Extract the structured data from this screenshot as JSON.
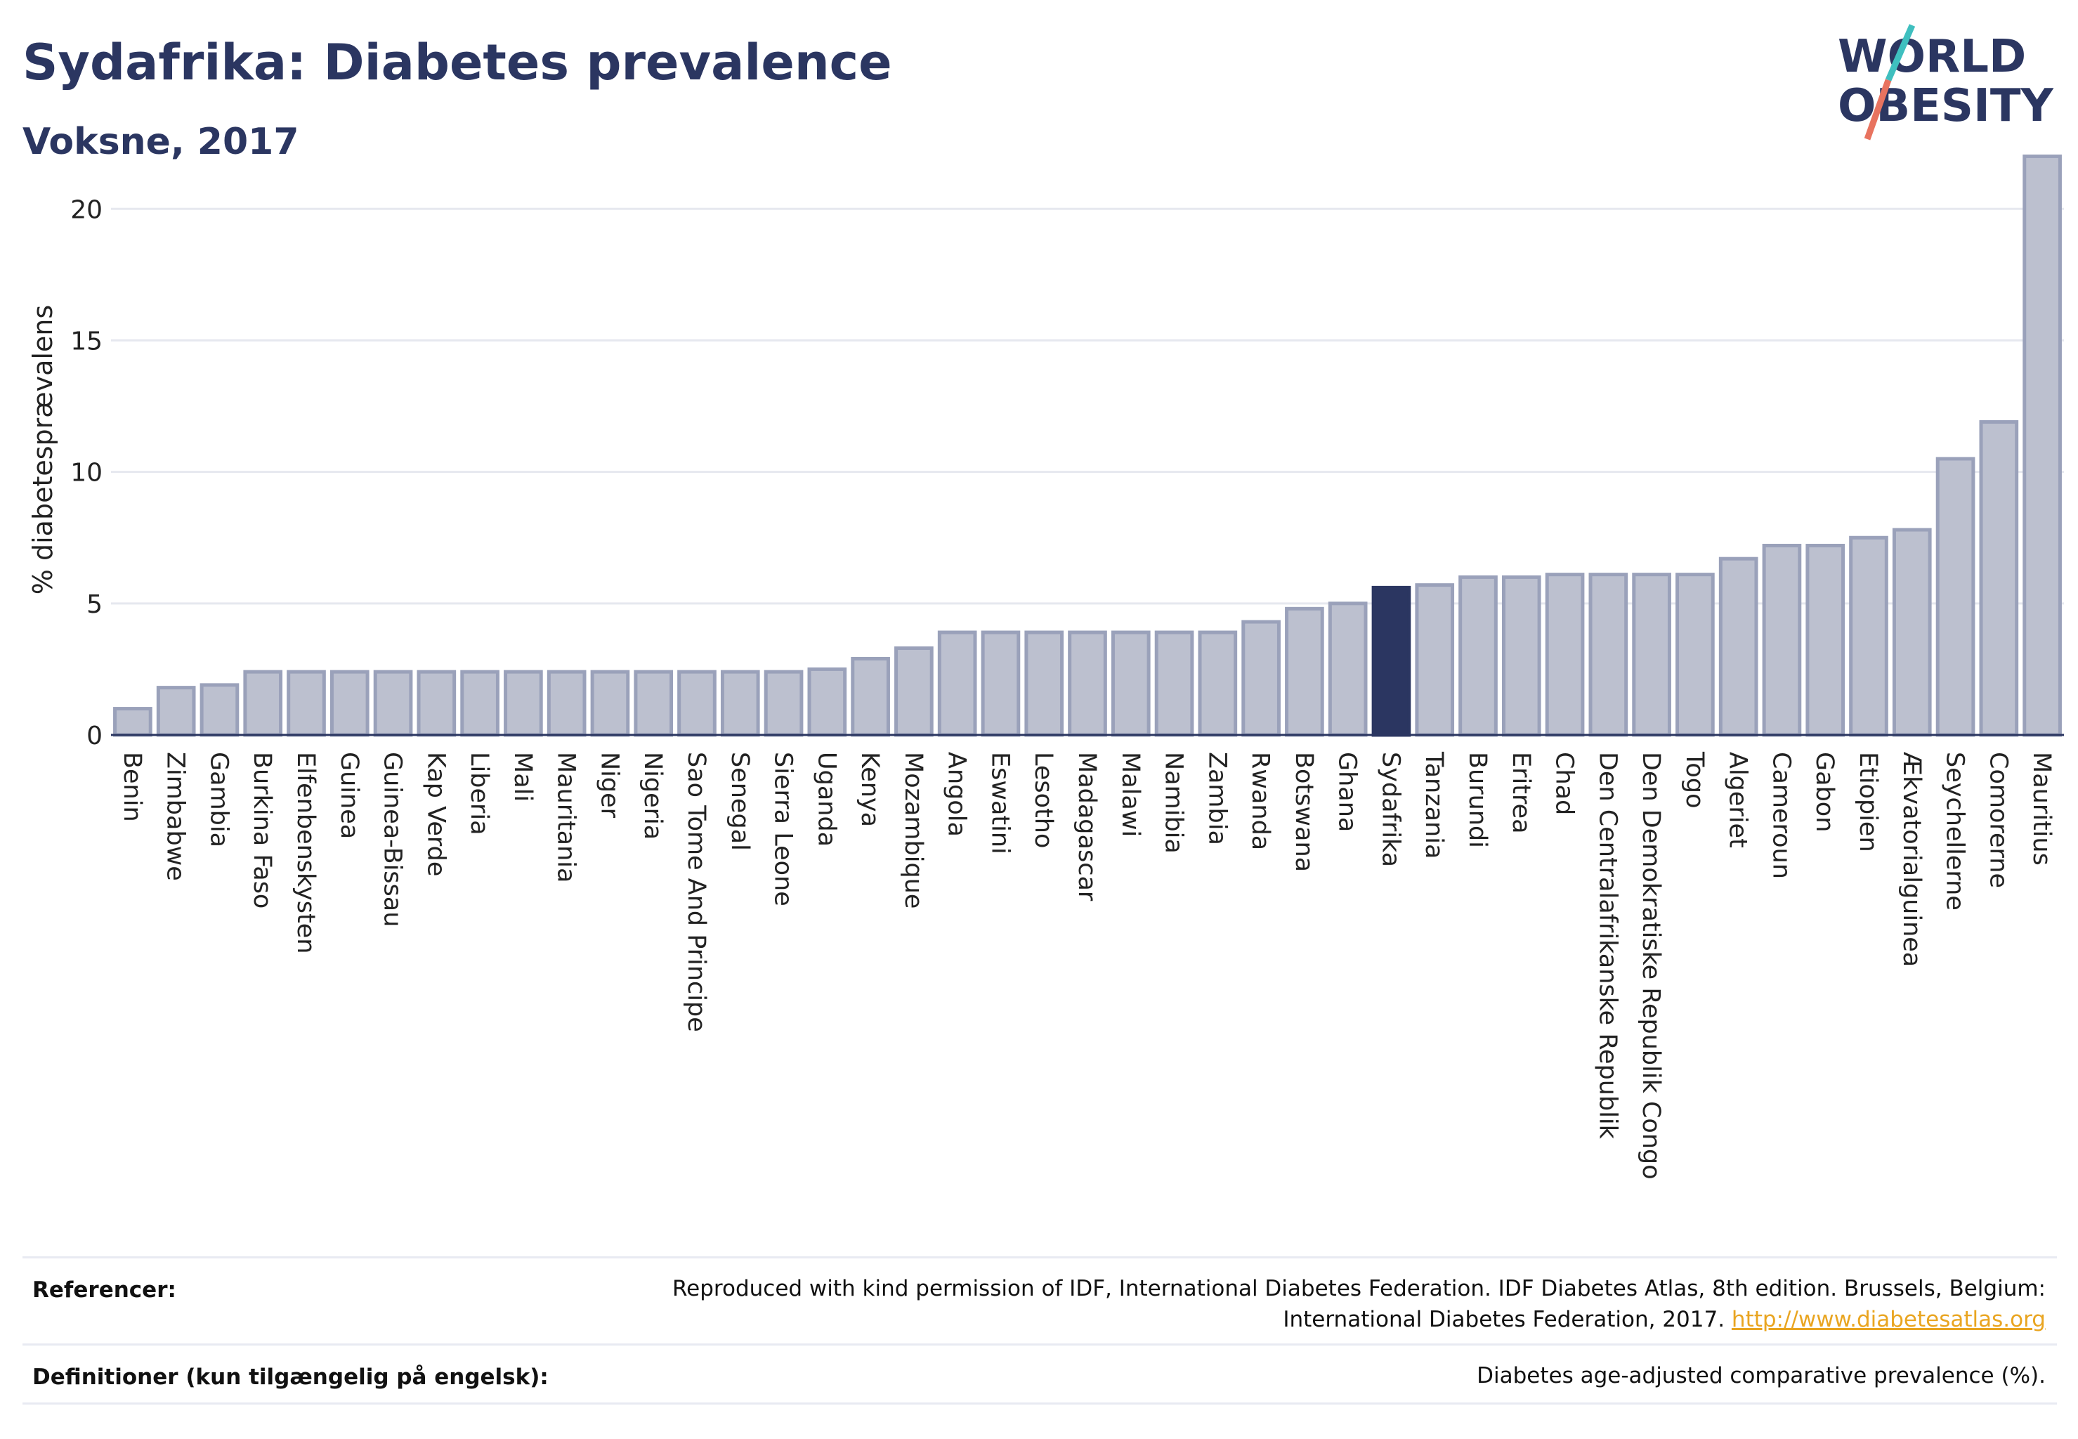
{
  "header": {
    "title": "Sydafrika: Diabetes prevalence",
    "subtitle": "Voksne, 2017"
  },
  "logo": {
    "line1": "WORLD",
    "line2": "OBESITY",
    "colors": {
      "text": "#2b3661",
      "slash_top": "#3fbfbf",
      "slash_bottom": "#e8735f"
    }
  },
  "chart_data": {
    "type": "bar",
    "ylabel": "% diabetesprævalens",
    "xlabel": "",
    "ylim": [
      0,
      23
    ],
    "yticks": [
      0,
      5,
      10,
      15,
      20
    ],
    "grid": true,
    "highlight": "Sydafrika",
    "colors": {
      "bar": "#bcc0cf",
      "bar_stroke": "#9aa1ba",
      "highlight": "#2b3661",
      "grid": "#e6e8ef"
    },
    "categories": [
      "Benin",
      "Zimbabwe",
      "Gambia",
      "Burkina Faso",
      "Elfenbenskysten",
      "Guinea",
      "Guinea-Bissau",
      "Kap Verde",
      "Liberia",
      "Mali",
      "Mauritania",
      "Niger",
      "Nigeria",
      "Sao Tome And Principe",
      "Senegal",
      "Sierra Leone",
      "Uganda",
      "Kenya",
      "Mozambique",
      "Angola",
      "Eswatini",
      "Lesotho",
      "Madagascar",
      "Malawi",
      "Namibia",
      "Zambia",
      "Rwanda",
      "Botswana",
      "Ghana",
      "Sydafrika",
      "Tanzania",
      "Burundi",
      "Eritrea",
      "Chad",
      "Den Centralafrikanske Republik",
      "Den Demokratiske Republik Congo",
      "Togo",
      "Algeriet",
      "Cameroun",
      "Gabon",
      "Etiopien",
      "Ækvatorialguinea",
      "Seychellerne",
      "Comorerne",
      "Mauritius"
    ],
    "values": [
      1.0,
      1.8,
      1.9,
      2.4,
      2.4,
      2.4,
      2.4,
      2.4,
      2.4,
      2.4,
      2.4,
      2.4,
      2.4,
      2.4,
      2.4,
      2.4,
      2.5,
      2.9,
      3.3,
      3.9,
      3.9,
      3.9,
      3.9,
      3.9,
      3.9,
      3.9,
      4.3,
      4.8,
      5.0,
      5.6,
      5.7,
      6.0,
      6.0,
      6.1,
      6.1,
      6.1,
      6.1,
      6.7,
      7.2,
      7.2,
      7.5,
      7.8,
      10.5,
      11.9,
      22.0
    ]
  },
  "footer": {
    "ref_label": "Referencer:",
    "ref_text": "Reproduced with kind permission of IDF, International Diabetes Federation. IDF Diabetes Atlas, 8th edition. Brussels, Belgium: International Diabetes Federation, 2017.",
    "ref_link": "http://www.diabetesatlas.org",
    "def_label": "Definitioner (kun tilgængelig på engelsk):",
    "def_text": "Diabetes age-adjusted comparative prevalence (%)."
  }
}
